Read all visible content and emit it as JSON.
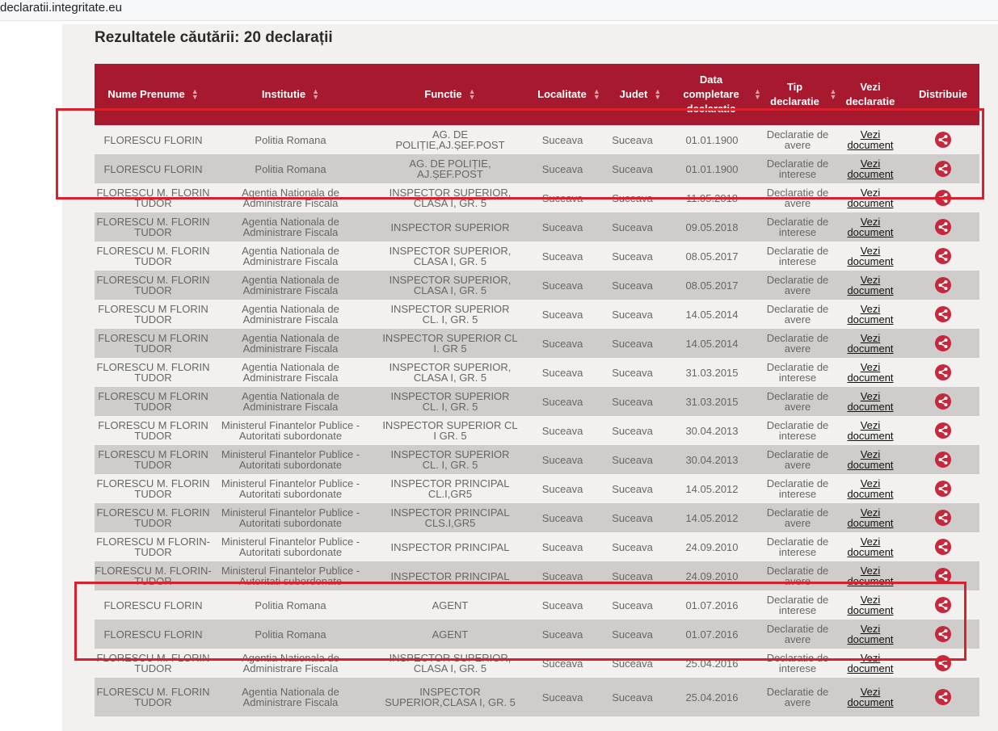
{
  "browser": {
    "url": "declaratii.integritate.eu"
  },
  "results": {
    "title": "Rezultatele căutării: 20 declarații"
  },
  "columns": {
    "nume": "Nume Prenume",
    "institutie": "Institutie",
    "functie": "Functie",
    "localitate": "Localitate",
    "judet": "Judet",
    "data": "Data completare declaratie",
    "tip": "Tip declaratie",
    "vezi": "Vezi declaratie",
    "distribuie": "Distribuie"
  },
  "rows": [
    {
      "nume": "FLORESCU FLORIN",
      "institutie": "Politia Romana",
      "functie": "AG. DE POLIȚIE,AJ.ȘEF.POST",
      "localitate": "Suceava",
      "judet": "Suceava",
      "data": "01.01.1900",
      "tip": "Declaratie de avere",
      "vezi": "Vezi document"
    },
    {
      "nume": "FLORESCU FLORIN",
      "institutie": "Politia Romana",
      "functie": "AG. DE POLIȚIE, AJ.ȘEF.POST",
      "localitate": "Suceava",
      "judet": "Suceava",
      "data": "01.01.1900",
      "tip": "Declaratie de interese",
      "vezi": "Vezi document"
    },
    {
      "nume": "FLORESCU M. FLORIN TUDOR",
      "institutie": "Agentia Nationala de Administrare Fiscala",
      "functie": "INSPECTOR SUPERIOR, CLASA I, GR. 5",
      "localitate": "Suceava",
      "judet": "Suceava",
      "data": "11.05.2018",
      "tip": "Declaratie de avere",
      "vezi": "Vezi document"
    },
    {
      "nume": "FLORESCU M. FLORIN TUDOR",
      "institutie": "Agentia Nationala de Administrare Fiscala",
      "functie": "INSPECTOR SUPERIOR",
      "localitate": "Suceava",
      "judet": "Suceava",
      "data": "09.05.2018",
      "tip": "Declaratie de interese",
      "vezi": "Vezi document"
    },
    {
      "nume": "FLORESCU M. FLORIN TUDOR",
      "institutie": "Agentia Nationala de Administrare Fiscala",
      "functie": "INSPECTOR SUPERIOR, CLASA I, GR. 5",
      "localitate": "Suceava",
      "judet": "Suceava",
      "data": "08.05.2017",
      "tip": "Declaratie de interese",
      "vezi": "Vezi document"
    },
    {
      "nume": "FLORESCU M. FLORIN TUDOR",
      "institutie": "Agentia Nationala de Administrare Fiscala",
      "functie": "INSPECTOR SUPERIOR, CLASA I, GR. 5",
      "localitate": "Suceava",
      "judet": "Suceava",
      "data": "08.05.2017",
      "tip": "Declaratie de avere",
      "vezi": "Vezi document"
    },
    {
      "nume": "FLORESCU M FLORIN TUDOR",
      "institutie": "Agentia Nationala de Administrare Fiscala",
      "functie": "INSPECTOR SUPERIOR CL. I, GR. 5",
      "localitate": "Suceava",
      "judet": "Suceava",
      "data": "14.05.2014",
      "tip": "Declaratie de avere",
      "vezi": "Vezi document"
    },
    {
      "nume": "FLORESCU M FLORIN TUDOR",
      "institutie": "Agentia Nationala de Administrare Fiscala",
      "functie": "INSPECTOR SUPERIOR CL I. GR 5",
      "localitate": "Suceava",
      "judet": "Suceava",
      "data": "14.05.2014",
      "tip": "Declaratie de avere",
      "vezi": "Vezi document"
    },
    {
      "nume": "FLORESCU M. FLORIN TUDOR",
      "institutie": "Agentia Nationala de Administrare Fiscala",
      "functie": "INSPECTOR SUPERIOR, CLASA I, GR. 5",
      "localitate": "Suceava",
      "judet": "Suceava",
      "data": "31.03.2015",
      "tip": "Declaratie de interese",
      "vezi": "Vezi document"
    },
    {
      "nume": "FLORESCU M FLORIN TUDOR",
      "institutie": "Agentia Nationala de Administrare Fiscala",
      "functie": "INSPECTOR SUPERIOR CL. I, GR. 5",
      "localitate": "Suceava",
      "judet": "Suceava",
      "data": "31.03.2015",
      "tip": "Declaratie de avere",
      "vezi": "Vezi document"
    },
    {
      "nume": "FLORESCU M FLORIN TUDOR",
      "institutie": "Ministerul Finantelor Publice - Autoritati subordonate",
      "functie": "INSPECTOR SUPERIOR CL I GR. 5",
      "localitate": "Suceava",
      "judet": "Suceava",
      "data": "30.04.2013",
      "tip": "Declaratie de interese",
      "vezi": "Vezi document"
    },
    {
      "nume": "FLORESCU M FLORIN TUDOR",
      "institutie": "Ministerul Finantelor Publice - Autoritati subordonate",
      "functie": "INSPECTOR SUPERIOR CL. I, GR. 5",
      "localitate": "Suceava",
      "judet": "Suceava",
      "data": "30.04.2013",
      "tip": "Declaratie de avere",
      "vezi": "Vezi document"
    },
    {
      "nume": "FLORESCU M. FLORIN TUDOR",
      "institutie": "Ministerul Finantelor Publice - Autoritati subordonate",
      "functie": "INSPECTOR PRINCIPAL CL.I,GR5",
      "localitate": "Suceava",
      "judet": "Suceava",
      "data": "14.05.2012",
      "tip": "Declaratie de interese",
      "vezi": "Vezi document"
    },
    {
      "nume": "FLORESCU M. FLORIN TUDOR",
      "institutie": "Ministerul Finantelor Publice - Autoritati subordonate",
      "functie": "INSPECTOR PRINCIPAL CLS.I,GR5",
      "localitate": "Suceava",
      "judet": "Suceava",
      "data": "14.05.2012",
      "tip": "Declaratie de avere",
      "vezi": "Vezi document"
    },
    {
      "nume": "FLORESCU M FLORIN-TUDOR",
      "institutie": "Ministerul Finantelor Publice - Autoritati subordonate",
      "functie": "INSPECTOR PRINCIPAL",
      "localitate": "Suceava",
      "judet": "Suceava",
      "data": "24.09.2010",
      "tip": "Declaratie de interese",
      "vezi": "Vezi document"
    },
    {
      "nume": "FLORESCU M. FLORIN-TUDOR",
      "institutie": "Ministerul Finantelor Publice - Autoritati subordonate",
      "functie": "INSPECTOR PRINCIPAL",
      "localitate": "Suceava",
      "judet": "Suceava",
      "data": "24.09.2010",
      "tip": "Declaratie de avere",
      "vezi": "Vezi document"
    },
    {
      "nume": "FLORESCU FLORIN",
      "institutie": "Politia Romana",
      "functie": "AGENT",
      "localitate": "Suceava",
      "judet": "Suceava",
      "data": "01.07.2016",
      "tip": "Declaratie de interese",
      "vezi": "Vezi document"
    },
    {
      "nume": "FLORESCU FLORIN",
      "institutie": "Politia Romana",
      "functie": "AGENT",
      "localitate": "Suceava",
      "judet": "Suceava",
      "data": "01.07.2016",
      "tip": "Declaratie de avere",
      "vezi": "Vezi document"
    },
    {
      "nume": "FLORESCU M. FLORIN TUDOR",
      "institutie": "Agentia Nationala de Administrare Fiscala",
      "functie": "INSPECTOR SUPERIOR, CLASA I, GR. 5",
      "localitate": "Suceava",
      "judet": "Suceava",
      "data": "25.04.2016",
      "tip": "Declaratie de interese",
      "vezi": "Vezi document"
    },
    {
      "nume": "FLORESCU M. FLORIN TUDOR",
      "institutie": "Agentia Nationala de Administrare Fiscala",
      "functie": "INSPECTOR SUPERIOR,CLASA I, GR. 5",
      "localitate": "Suceava",
      "judet": "Suceava",
      "data": "25.04.2016",
      "tip": "Declaratie de avere",
      "vezi": "Vezi document"
    }
  ],
  "colors": {
    "header": "#a6192e",
    "highlight": "#d9202c",
    "share": "#c8283c"
  }
}
